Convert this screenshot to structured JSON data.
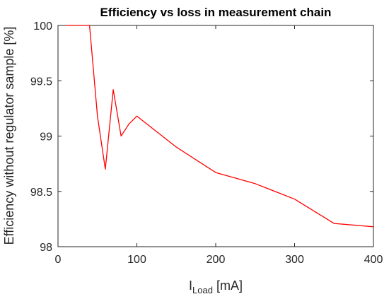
{
  "chart_data": {
    "type": "line",
    "title": "Efficiency vs loss in measurement chain",
    "xlabel_main": "I",
    "xlabel_sub": "Load",
    "xlabel_unit": " [mA]",
    "ylabel": "Efficiency without regulator sample [%]",
    "xlim": [
      0,
      400
    ],
    "ylim": [
      98,
      100
    ],
    "x_ticks": [
      0,
      100,
      200,
      300,
      400
    ],
    "y_ticks": [
      98,
      98.5,
      99,
      99.5,
      100
    ],
    "x_tick_labels": [
      "0",
      "100",
      "200",
      "300",
      "400"
    ],
    "y_tick_labels": [
      "98",
      "98.5",
      "99",
      "99.5",
      "100"
    ],
    "grid": false,
    "series": [
      {
        "color": "#ff0000",
        "x": [
          10,
          20,
          30,
          40,
          50,
          60,
          70,
          80,
          90,
          100,
          150,
          200,
          250,
          300,
          350,
          400
        ],
        "y": [
          100,
          100,
          100,
          100,
          99.18,
          98.7,
          99.42,
          99.0,
          99.11,
          99.18,
          98.9,
          98.67,
          98.57,
          98.43,
          98.21,
          98.18
        ]
      }
    ]
  }
}
